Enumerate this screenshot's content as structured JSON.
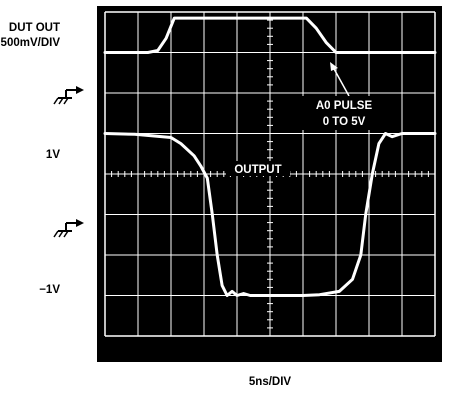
{
  "chart_data": {
    "type": "line",
    "title": "",
    "ylabel": "DUT OUT",
    "yscale_label": "500mV/DIV",
    "xscale_label": "5ns/DIV",
    "x_unit": "div",
    "y_unit": "div",
    "xlim": [
      0,
      10
    ],
    "ylim": [
      0,
      8
    ],
    "grid": true,
    "level_labels": {
      "upper": "1V",
      "lower": "−1V"
    },
    "annotations": [
      {
        "text": "A0 PULSE",
        "line": 1
      },
      {
        "text": "0 TO 5V",
        "line": 2
      },
      {
        "text": "OUTPUT",
        "line": 1
      }
    ],
    "series": [
      {
        "name": "",
        "role": "input-pulse",
        "color": "#ffffff",
        "x": [
          0,
          1.3,
          1.6,
          1.85,
          2.1,
          6.1,
          6.4,
          6.7,
          7.0,
          10
        ],
        "y": [
          7.0,
          7.0,
          7.05,
          7.35,
          7.85,
          7.85,
          7.6,
          7.25,
          7.0,
          7.0
        ]
      },
      {
        "name": "",
        "role": "output",
        "color": "#ffffff",
        "x": [
          0,
          0.9,
          2.0,
          2.3,
          2.7,
          2.9,
          3.1,
          3.25,
          3.4,
          3.55,
          3.7,
          3.85,
          4.0,
          4.2,
          4.4,
          6.0,
          6.5,
          7.1,
          7.5,
          7.75,
          7.9,
          8.1,
          8.3,
          8.5,
          8.7,
          9.0,
          10
        ],
        "y": [
          5.0,
          4.98,
          4.9,
          4.75,
          4.45,
          4.2,
          3.9,
          3.0,
          2.0,
          1.25,
          1.0,
          1.1,
          1.0,
          1.05,
          1.0,
          1.0,
          1.02,
          1.1,
          1.4,
          2.0,
          3.0,
          4.0,
          4.75,
          5.0,
          4.92,
          5.0,
          5.0
        ]
      }
    ]
  },
  "colors": {
    "screen": "#000000",
    "trace": "#ffffff",
    "grid": "#ffffff",
    "label": "#000000"
  },
  "icons": [
    "ground-marker-icon",
    "ground-marker-icon"
  ]
}
